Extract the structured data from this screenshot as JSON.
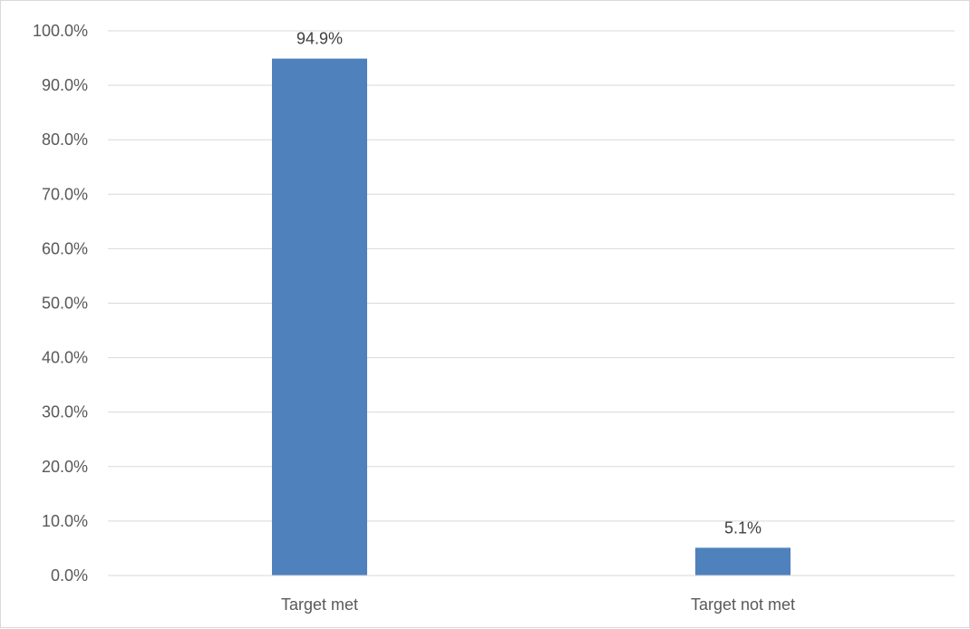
{
  "chart_data": {
    "type": "bar",
    "categories": [
      "Target met",
      "Target not met"
    ],
    "values": [
      94.9,
      5.1
    ],
    "data_labels": [
      "94.9%",
      "5.1%"
    ],
    "title": "",
    "xlabel": "",
    "ylabel": "",
    "ylim": [
      0,
      100
    ],
    "y_ticks": [
      0,
      10,
      20,
      30,
      40,
      50,
      60,
      70,
      80,
      90,
      100
    ],
    "y_tick_labels": [
      "0.0%",
      "10.0%",
      "20.0%",
      "30.0%",
      "40.0%",
      "50.0%",
      "60.0%",
      "70.0%",
      "80.0%",
      "90.0%",
      "100.0%"
    ],
    "grid": true,
    "legend": "none",
    "bar_color": "#4f81bd",
    "grid_color": "#d9d9d9"
  }
}
